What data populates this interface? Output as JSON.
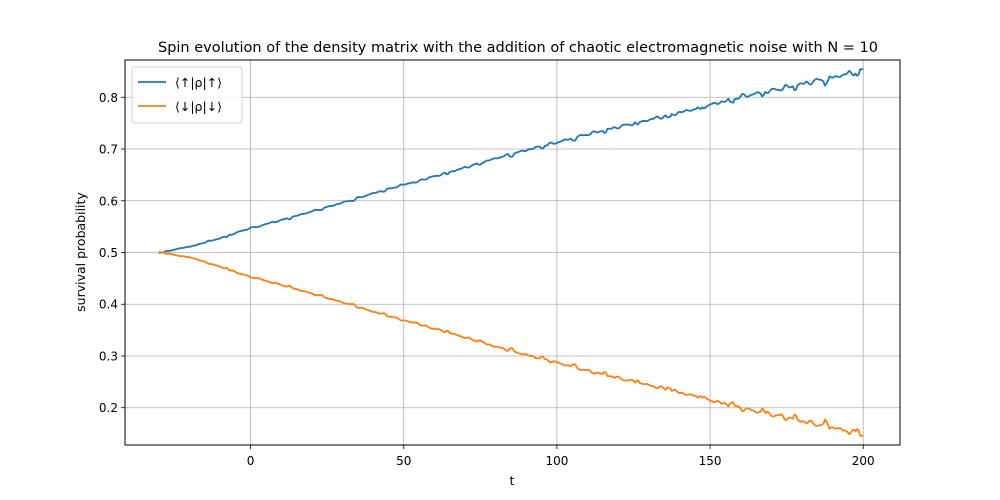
{
  "chart_data": {
    "type": "line",
    "title": "Spin evolution of the density matrix with the addition of chaotic electromagnetic noise with N = 10",
    "xlabel": "t",
    "ylabel": "survival probability",
    "xlim": [
      -41,
      212
    ],
    "ylim": [
      0.128,
      0.872
    ],
    "xticks": [
      0,
      50,
      100,
      150,
      200
    ],
    "yticks": [
      0.2,
      0.3,
      0.4,
      0.5,
      0.6,
      0.7,
      0.8
    ],
    "grid": true,
    "legend_position": "top-left",
    "x_start": -30,
    "x_end": 200,
    "series": [
      {
        "name": "⟨↑|ρ|↑⟩",
        "color": "#1f77b4",
        "points": [
          [
            -30,
            0.5
          ],
          [
            -20,
            0.512
          ],
          [
            -10,
            0.528
          ],
          [
            0,
            0.548
          ],
          [
            10,
            0.563
          ],
          [
            20,
            0.58
          ],
          [
            30,
            0.597
          ],
          [
            40,
            0.615
          ],
          [
            50,
            0.632
          ],
          [
            60,
            0.648
          ],
          [
            70,
            0.665
          ],
          [
            80,
            0.683
          ],
          [
            90,
            0.699
          ],
          [
            100,
            0.714
          ],
          [
            110,
            0.73
          ],
          [
            120,
            0.744
          ],
          [
            130,
            0.758
          ],
          [
            140,
            0.772
          ],
          [
            150,
            0.787
          ],
          [
            160,
            0.803
          ],
          [
            170,
            0.815
          ],
          [
            180,
            0.828
          ],
          [
            190,
            0.841
          ],
          [
            200,
            0.855
          ]
        ]
      },
      {
        "name": "⟨↓|ρ|↓⟩",
        "color": "#ff7f0e",
        "points": [
          [
            -30,
            0.5
          ],
          [
            -20,
            0.49
          ],
          [
            -10,
            0.472
          ],
          [
            0,
            0.452
          ],
          [
            10,
            0.437
          ],
          [
            20,
            0.42
          ],
          [
            30,
            0.403
          ],
          [
            40,
            0.385
          ],
          [
            50,
            0.368
          ],
          [
            60,
            0.352
          ],
          [
            70,
            0.335
          ],
          [
            80,
            0.317
          ],
          [
            90,
            0.301
          ],
          [
            100,
            0.286
          ],
          [
            110,
            0.27
          ],
          [
            120,
            0.256
          ],
          [
            130,
            0.242
          ],
          [
            140,
            0.228
          ],
          [
            150,
            0.213
          ],
          [
            160,
            0.197
          ],
          [
            170,
            0.185
          ],
          [
            180,
            0.172
          ],
          [
            190,
            0.159
          ],
          [
            200,
            0.145
          ]
        ]
      }
    ]
  }
}
